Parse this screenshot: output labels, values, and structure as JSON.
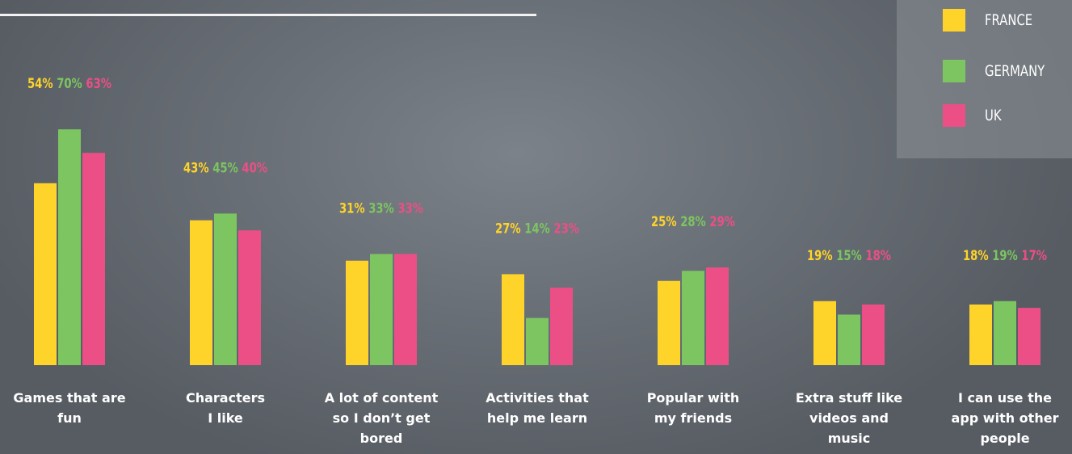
{
  "colors": {
    "france": "#ffd42a",
    "germany": "#7cc561",
    "uk": "#ec4f86"
  },
  "legend": {
    "items": [
      {
        "label": "FRANCE",
        "color": "#ffd42a"
      },
      {
        "label": "GERMANY",
        "color": "#7cc561"
      },
      {
        "label": "UK",
        "color": "#ec4f86"
      }
    ]
  },
  "chart_data": {
    "type": "bar",
    "title": "",
    "xlabel": "",
    "ylabel": "",
    "grid": false,
    "legend_position": "top-right",
    "ylim": [
      0,
      80
    ],
    "categories": [
      "Games that are fun",
      "Characters I like",
      "A lot of content so I don’t get bored",
      "Activities that help me learn",
      "Popular with my friends",
      "Extra stuff like videos and music",
      "I can use the app with other people"
    ],
    "category_lines": [
      [
        "Games that are",
        "fun"
      ],
      [
        "Characters",
        "I like"
      ],
      [
        "A lot of content",
        "so I don’t get",
        "bored"
      ],
      [
        "Activities that",
        "help me learn"
      ],
      [
        "Popular with",
        "my friends"
      ],
      [
        "Extra stuff like",
        "videos and",
        "music"
      ],
      [
        "I can use the",
        "app with other",
        "people"
      ]
    ],
    "series": [
      {
        "name": "FRANCE",
        "color": "#ffd42a",
        "values": [
          54,
          43,
          31,
          27,
          25,
          19,
          18
        ],
        "labels": [
          "54%",
          "43%",
          "31%",
          "27%",
          "25%",
          "19%",
          "18%"
        ]
      },
      {
        "name": "GERMANY",
        "color": "#7cc561",
        "values": [
          70,
          45,
          33,
          14,
          28,
          15,
          19
        ],
        "labels": [
          "70%",
          "45%",
          "33%",
          "14%",
          "28%",
          "15%",
          "19%"
        ]
      },
      {
        "name": "UK",
        "color": "#ec4f86",
        "values": [
          63,
          40,
          33,
          23,
          29,
          18,
          17
        ],
        "labels": [
          "63%",
          "40%",
          "33%",
          "23%",
          "29%",
          "18%",
          "17%"
        ]
      }
    ]
  }
}
